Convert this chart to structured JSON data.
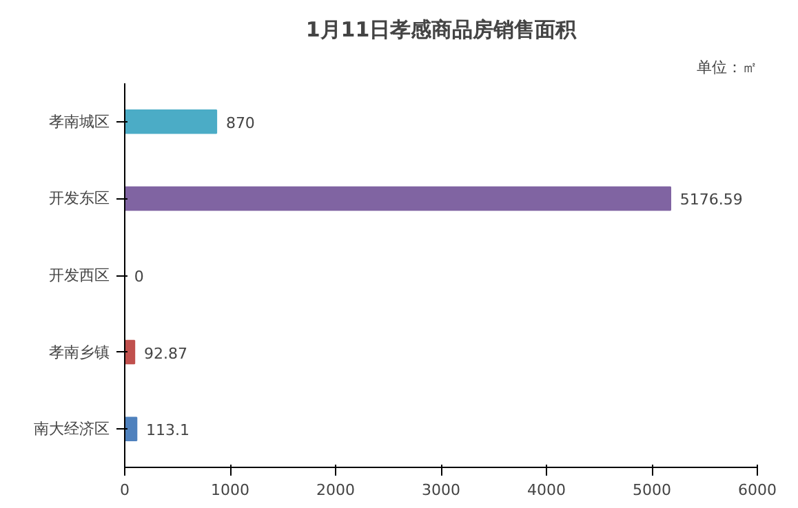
{
  "chart_data": {
    "type": "bar",
    "orientation": "horizontal",
    "title": "1月11日孝感商品房销售面积",
    "annotations": [
      "单位：㎡"
    ],
    "categories": [
      "孝南城区",
      "开发东区",
      "开发西区",
      "孝南乡镇",
      "南大经济区"
    ],
    "values": [
      870,
      5176.59,
      0,
      92.87,
      113.1
    ],
    "colors": [
      "#4bacc6",
      "#8064a2",
      "#9bbb59",
      "#c0504d",
      "#4f81bd"
    ],
    "xlim": [
      0,
      6000
    ],
    "xticks": [
      0,
      1000,
      2000,
      3000,
      4000,
      5000,
      6000
    ],
    "data_labels": true,
    "grid": false
  }
}
